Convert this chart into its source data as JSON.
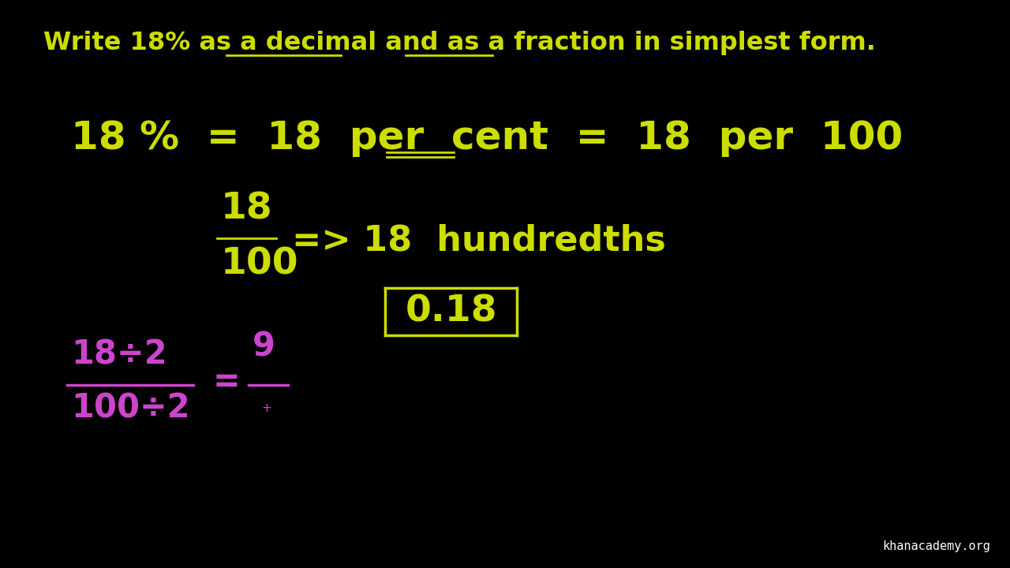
{
  "bg_color": "#000000",
  "yellow": "#ccdd00",
  "magenta": "#cc44cc",
  "white": "#ffffff",
  "title_parts": [
    {
      "text": "Write 18% as a ",
      "underline": false
    },
    {
      "text": "decimal",
      "underline": true
    },
    {
      "text": " and as a ",
      "underline": false
    },
    {
      "text": "fraction",
      "underline": true
    },
    {
      "text": " in simplest form.",
      "underline": false
    }
  ],
  "watermark": "khanacademy.org"
}
